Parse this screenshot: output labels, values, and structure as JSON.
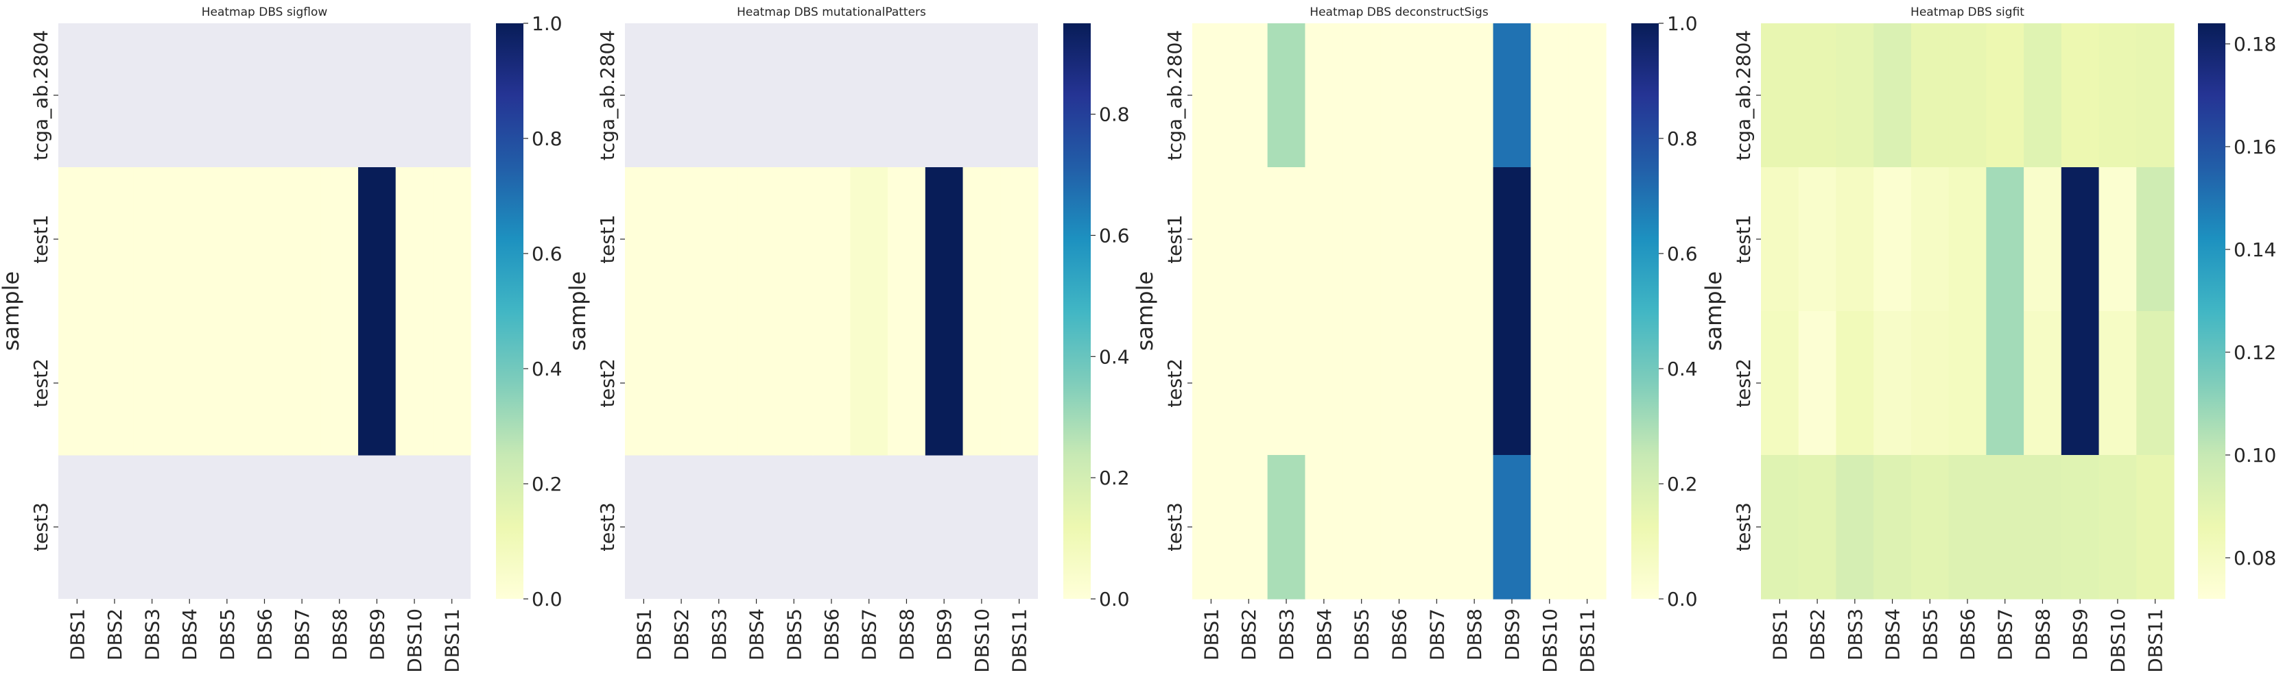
{
  "chart_data": [
    {
      "type": "heatmap",
      "title": "Heatmap DBS sigflow",
      "ylabel": "sample",
      "xlabel": "",
      "rows": [
        "tcga_ab.2804",
        "test1",
        "test2",
        "test3"
      ],
      "columns": [
        "DBS1",
        "DBS2",
        "DBS3",
        "DBS4",
        "DBS5",
        "DBS6",
        "DBS7",
        "DBS8",
        "DBS9",
        "DBS10",
        "DBS11"
      ],
      "values": [
        [
          null,
          null,
          null,
          null,
          null,
          null,
          null,
          null,
          null,
          null,
          null
        ],
        [
          0.0,
          0.0,
          0.0,
          0.0,
          0.0,
          0.0,
          0.0,
          0.0,
          1.0,
          0.0,
          0.0
        ],
        [
          0.0,
          0.0,
          0.0,
          0.0,
          0.0,
          0.0,
          0.0,
          0.0,
          1.0,
          0.0,
          0.0
        ],
        [
          null,
          null,
          null,
          null,
          null,
          null,
          null,
          null,
          null,
          null,
          null
        ]
      ],
      "colormap": "YlGnBu",
      "missing_color": "#eaeaf2",
      "vmin": 0.0,
      "vmax": 1.0,
      "colorbar_ticks": [
        "0.0",
        "0.2",
        "0.4",
        "0.6",
        "0.8",
        "1.0"
      ]
    },
    {
      "type": "heatmap",
      "title": "Heatmap DBS mutationalPatters",
      "ylabel": "sample",
      "xlabel": "",
      "rows": [
        "tcga_ab.2804",
        "test1",
        "test2",
        "test3"
      ],
      "columns": [
        "DBS1",
        "DBS2",
        "DBS3",
        "DBS4",
        "DBS5",
        "DBS6",
        "DBS7",
        "DBS8",
        "DBS9",
        "DBS10",
        "DBS11"
      ],
      "values": [
        [
          null,
          null,
          null,
          null,
          null,
          null,
          null,
          null,
          null,
          null,
          null
        ],
        [
          0.0,
          0.0,
          0.0,
          0.0,
          0.0,
          0.0,
          0.04,
          0.0,
          0.95,
          0.0,
          0.0
        ],
        [
          0.0,
          0.0,
          0.0,
          0.0,
          0.0,
          0.0,
          0.04,
          0.0,
          0.95,
          0.0,
          0.0
        ],
        [
          null,
          null,
          null,
          null,
          null,
          null,
          null,
          null,
          null,
          null,
          null
        ]
      ],
      "colormap": "YlGnBu",
      "missing_color": "#eaeaf2",
      "vmin": 0.0,
      "vmax": 0.95,
      "colorbar_ticks": [
        "0.0",
        "0.2",
        "0.4",
        "0.6",
        "0.8"
      ]
    },
    {
      "type": "heatmap",
      "title": "Heatmap DBS deconstructSigs",
      "ylabel": "sample",
      "xlabel": "",
      "rows": [
        "tcga_ab.2804",
        "test1",
        "test2",
        "test3"
      ],
      "columns": [
        "DBS1",
        "DBS2",
        "DBS3",
        "DBS4",
        "DBS5",
        "DBS6",
        "DBS7",
        "DBS8",
        "DBS9",
        "DBS10",
        "DBS11"
      ],
      "values": [
        [
          0.0,
          0.0,
          0.3,
          0.0,
          0.0,
          0.0,
          0.0,
          0.0,
          0.7,
          0.0,
          0.0
        ],
        [
          0.0,
          0.0,
          0.0,
          0.0,
          0.0,
          0.0,
          0.0,
          0.0,
          1.0,
          0.0,
          0.0
        ],
        [
          0.0,
          0.0,
          0.0,
          0.0,
          0.0,
          0.0,
          0.0,
          0.0,
          1.0,
          0.0,
          0.0
        ],
        [
          0.0,
          0.0,
          0.3,
          0.0,
          0.0,
          0.0,
          0.0,
          0.0,
          0.7,
          0.0,
          0.0
        ]
      ],
      "colormap": "YlGnBu",
      "missing_color": "#eaeaf2",
      "vmin": 0.0,
      "vmax": 1.0,
      "colorbar_ticks": [
        "0.0",
        "0.2",
        "0.4",
        "0.6",
        "0.8",
        "1.0"
      ]
    },
    {
      "type": "heatmap",
      "title": "Heatmap DBS sigfit",
      "ylabel": "sample",
      "xlabel": "",
      "rows": [
        "tcga_ab.2804",
        "test1",
        "test2",
        "test3"
      ],
      "columns": [
        "DBS1",
        "DBS2",
        "DBS3",
        "DBS4",
        "DBS5",
        "DBS6",
        "DBS7",
        "DBS8",
        "DBS9",
        "DBS10",
        "DBS11"
      ],
      "values": [
        [
          0.088,
          0.088,
          0.089,
          0.093,
          0.088,
          0.088,
          0.086,
          0.091,
          0.086,
          0.087,
          0.088
        ],
        [
          0.08,
          0.077,
          0.08,
          0.075,
          0.079,
          0.081,
          0.107,
          0.077,
          0.183,
          0.075,
          0.097
        ],
        [
          0.081,
          0.074,
          0.083,
          0.078,
          0.08,
          0.081,
          0.107,
          0.079,
          0.183,
          0.079,
          0.092
        ],
        [
          0.091,
          0.09,
          0.095,
          0.092,
          0.09,
          0.092,
          0.092,
          0.092,
          0.091,
          0.09,
          0.088
        ]
      ],
      "colormap": "YlGnBu",
      "missing_color": "#eaeaf2",
      "vmin": 0.072,
      "vmax": 0.184,
      "colorbar_ticks": [
        "0.08",
        "0.10",
        "0.12",
        "0.14",
        "0.16",
        "0.18"
      ]
    }
  ]
}
